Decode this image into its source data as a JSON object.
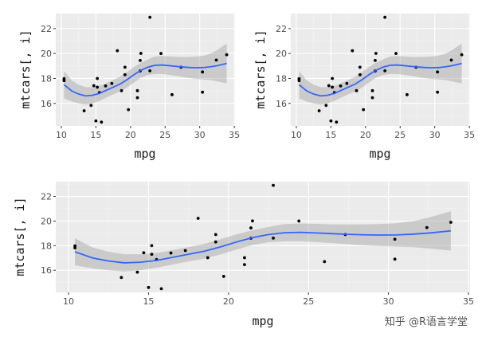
{
  "watermark": "知乎 @R语言学堂",
  "colors": {
    "panel_bg": "#EBEBEB",
    "grid_major": "#FFFFFF",
    "grid_minor": "#F4F4F4",
    "point": "#000000",
    "smooth_line": "#3366FF",
    "ribbon": "#999999"
  },
  "chart_data": [
    {
      "id": "top-left",
      "type": "scatter",
      "smooth": "loess",
      "xlabel": "mpg",
      "ylabel": "mtcars[, i]",
      "xlim": [
        9.2,
        35.1
      ],
      "ylim": [
        14.2,
        23.2
      ],
      "xticks": [
        10,
        15,
        20,
        25,
        30,
        35
      ],
      "yticks": [
        16,
        18,
        20,
        22
      ],
      "series": "qsec"
    },
    {
      "id": "top-right",
      "type": "scatter",
      "smooth": "loess",
      "xlabel": "mpg",
      "ylabel": "mtcars[, i]",
      "xlim": [
        9.2,
        35.1
      ],
      "ylim": [
        14.2,
        23.2
      ],
      "xticks": [
        10,
        15,
        20,
        25,
        30,
        35
      ],
      "yticks": [
        16,
        18,
        20,
        22
      ],
      "series": "qsec"
    },
    {
      "id": "bottom",
      "type": "scatter",
      "smooth": "loess",
      "xlabel": "mpg",
      "ylabel": "mtcars[, i]",
      "xlim": [
        9.2,
        35.1
      ],
      "ylim": [
        14.2,
        23.2
      ],
      "xticks": [
        10,
        15,
        20,
        25,
        30,
        35
      ],
      "yticks": [
        16,
        18,
        20,
        22
      ],
      "series": "qsec"
    }
  ],
  "series_data": {
    "qsec": {
      "points": [
        [
          10.4,
          17.98
        ],
        [
          10.4,
          17.82
        ],
        [
          13.3,
          15.41
        ],
        [
          14.3,
          15.84
        ],
        [
          14.7,
          17.42
        ],
        [
          15.0,
          14.6
        ],
        [
          15.2,
          18.0
        ],
        [
          15.2,
          17.3
        ],
        [
          15.5,
          16.87
        ],
        [
          15.8,
          14.5
        ],
        [
          16.4,
          17.4
        ],
        [
          17.3,
          17.6
        ],
        [
          18.1,
          20.22
        ],
        [
          18.7,
          17.02
        ],
        [
          19.2,
          18.3
        ],
        [
          19.2,
          18.9
        ],
        [
          19.7,
          15.5
        ],
        [
          21.0,
          16.46
        ],
        [
          21.0,
          17.02
        ],
        [
          21.4,
          19.44
        ],
        [
          21.4,
          18.6
        ],
        [
          21.5,
          20.01
        ],
        [
          22.8,
          18.61
        ],
        [
          22.8,
          22.9
        ],
        [
          24.4,
          20.0
        ],
        [
          26.0,
          16.7
        ],
        [
          27.3,
          18.9
        ],
        [
          30.4,
          16.9
        ],
        [
          30.4,
          18.52
        ],
        [
          32.4,
          19.47
        ],
        [
          33.9,
          19.9
        ]
      ],
      "smooth": [
        [
          10.4,
          17.5
        ],
        [
          11.5,
          17.0
        ],
        [
          12.5,
          16.75
        ],
        [
          13.5,
          16.6
        ],
        [
          14.5,
          16.65
        ],
        [
          15.5,
          16.8
        ],
        [
          16.5,
          17.05
        ],
        [
          17.5,
          17.3
        ],
        [
          18.5,
          17.55
        ],
        [
          19.5,
          17.9
        ],
        [
          20.5,
          18.3
        ],
        [
          21.5,
          18.65
        ],
        [
          22.5,
          18.9
        ],
        [
          23.5,
          19.05
        ],
        [
          24.5,
          19.08
        ],
        [
          25.5,
          19.03
        ],
        [
          26.5,
          18.97
        ],
        [
          27.5,
          18.92
        ],
        [
          28.5,
          18.88
        ],
        [
          29.5,
          18.86
        ],
        [
          30.5,
          18.87
        ],
        [
          31.5,
          18.93
        ],
        [
          32.5,
          19.02
        ],
        [
          33.9,
          19.2
        ]
      ],
      "band": [
        1.1,
        0.85,
        0.75,
        0.7,
        0.65,
        0.6,
        0.58,
        0.58,
        0.6,
        0.62,
        0.62,
        0.6,
        0.62,
        0.7,
        0.72,
        0.74,
        0.76,
        0.8,
        0.85,
        0.9,
        0.95,
        1.05,
        1.25,
        1.6
      ]
    }
  }
}
